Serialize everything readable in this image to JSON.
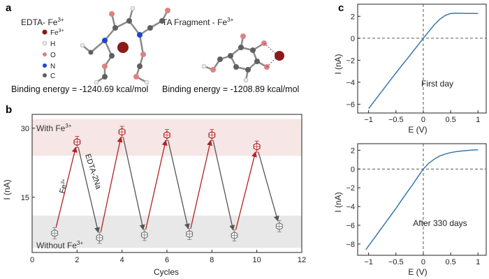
{
  "panel_a": {
    "letter": "a",
    "mol1_title": "EDTA- Fe",
    "mol1_title_sup": "3+",
    "mol2_title": "TA Fragment - Fe",
    "mol2_title_sup": "3+",
    "legend": [
      {
        "label": "Fe",
        "sup": "3+",
        "color": "#8b1a1a",
        "icon": "fe-atom-icon"
      },
      {
        "label": "H",
        "sup": "",
        "color": "#e8e8e8",
        "icon": "h-atom-icon"
      },
      {
        "label": "O",
        "sup": "",
        "color": "#e08080",
        "icon": "o-atom-icon"
      },
      {
        "label": "N",
        "sup": "",
        "color": "#2244cc",
        "icon": "n-atom-icon"
      },
      {
        "label": "C",
        "sup": "",
        "color": "#606060",
        "icon": "c-atom-icon"
      }
    ],
    "binding1": "Binding energy = -1240.69 kcal/mol",
    "binding2": "Binding energy = -1208.89 kcal/mol"
  },
  "panel_b": {
    "letter": "b",
    "with_label": "With Fe",
    "with_sup": "3+",
    "without_label": "Without Fe",
    "without_sup": "3+",
    "fe_arrow_label": "Fe",
    "fe_arrow_sup": "3+",
    "edta_arrow_label": "EDTA-2Na"
  },
  "panel_c": {
    "letter": "c",
    "top_note": "First day",
    "bottom_note": "After 330 days"
  },
  "chart_data": [
    {
      "id": "b",
      "type": "scatter",
      "xlabel": "Cycles",
      "ylabel": "I (nA)",
      "xlim": [
        0,
        12
      ],
      "ylim": [
        3,
        33
      ],
      "xticks": [
        0,
        2,
        4,
        6,
        8,
        10,
        12
      ],
      "yticks": [
        15,
        30
      ],
      "high_band": [
        24,
        32
      ],
      "low_band": [
        4,
        11
      ],
      "x": [
        1,
        2,
        3,
        4,
        5,
        6,
        7,
        8,
        9,
        10,
        11
      ],
      "y": [
        7.2,
        27.0,
        6.2,
        29.2,
        6.8,
        28.5,
        7.0,
        28.5,
        6.7,
        26.0,
        8.7
      ],
      "high_color": "#b22222",
      "low_color": "#777777",
      "arrow_up_color": "#b22222",
      "arrow_down_color": "#555555"
    },
    {
      "id": "c-top",
      "type": "line",
      "xlabel": "E (V)",
      "ylabel": "I (nA)",
      "xlim": [
        -1.2,
        1.15
      ],
      "ylim": [
        -6.8,
        3.1
      ],
      "xticks": [
        -1.0,
        -0.5,
        0.0,
        0.5,
        1.0
      ],
      "yticks": [
        -6,
        -4,
        -2,
        0,
        2
      ],
      "color": "#3a78a8",
      "x": [
        -1.0,
        -0.9,
        -0.8,
        -0.7,
        -0.6,
        -0.5,
        -0.4,
        -0.3,
        -0.2,
        -0.1,
        0.0,
        0.1,
        0.2,
        0.3,
        0.4,
        0.5,
        0.6,
        0.7,
        0.8,
        0.9,
        1.0
      ],
      "y": [
        -6.4,
        -5.75,
        -5.1,
        -4.45,
        -3.8,
        -3.15,
        -2.52,
        -1.9,
        -1.27,
        -0.64,
        0.0,
        0.62,
        1.22,
        1.72,
        2.08,
        2.25,
        2.28,
        2.27,
        2.26,
        2.26,
        2.25
      ]
    },
    {
      "id": "c-bottom",
      "type": "line",
      "xlabel": "E (V)",
      "ylabel": "I (nA)",
      "xlim": [
        -1.2,
        1.15
      ],
      "ylim": [
        -9.2,
        2.7
      ],
      "xticks": [
        -1.0,
        -0.5,
        0.0,
        0.5,
        1.0
      ],
      "yticks": [
        -8,
        -6,
        -4,
        -2,
        0,
        2
      ],
      "color": "#3a78a8",
      "x": [
        -1.05,
        -0.9,
        -0.8,
        -0.7,
        -0.6,
        -0.5,
        -0.4,
        -0.3,
        -0.2,
        -0.1,
        0.0,
        0.1,
        0.2,
        0.3,
        0.4,
        0.5,
        0.6,
        0.7,
        0.8,
        0.9,
        1.0
      ],
      "y": [
        -8.6,
        -7.4,
        -6.6,
        -5.8,
        -5.0,
        -4.2,
        -3.35,
        -2.5,
        -1.7,
        -0.85,
        0.0,
        0.62,
        1.05,
        1.38,
        1.6,
        1.75,
        1.85,
        1.92,
        1.97,
        2.02,
        2.05
      ]
    }
  ]
}
